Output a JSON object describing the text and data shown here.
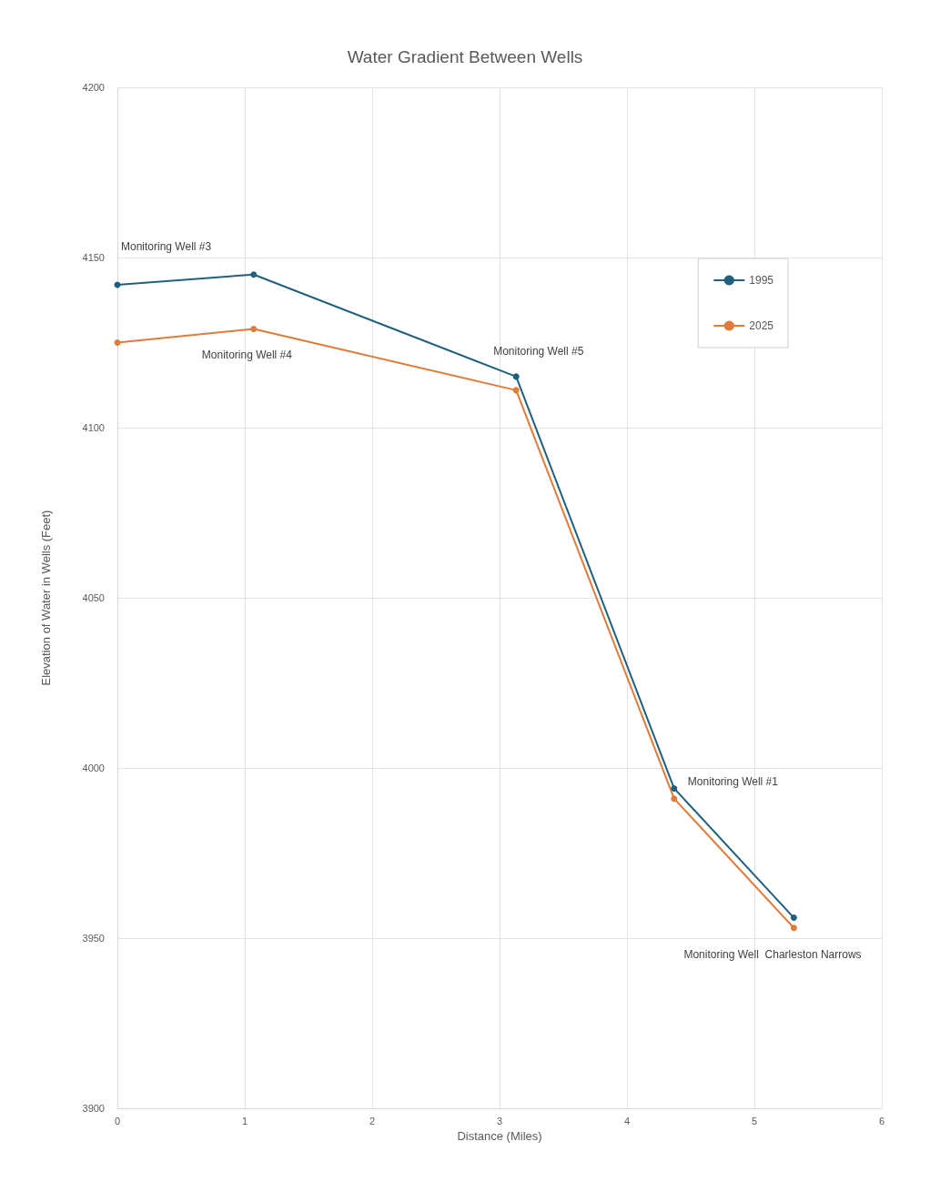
{
  "chart_data": {
    "type": "line",
    "title": "Water Gradient Between Wells",
    "xlabel": "Distance (Miles)",
    "ylabel": "Elevation of Water in Wells (Feet)",
    "xlim": [
      0,
      6
    ],
    "xticks": [
      0,
      1,
      2,
      3,
      4,
      5,
      6
    ],
    "ylim": [
      3900,
      4200
    ],
    "yticks": [
      3900,
      3950,
      4000,
      4050,
      4100,
      4150,
      4200
    ],
    "grid": true,
    "legend": "top right",
    "marker": "circle",
    "line_style": "solid",
    "series": [
      {
        "name": "1995",
        "color": "#20607f",
        "x": [
          0,
          1.07,
          3.13,
          4.37,
          5.31
        ],
        "values": [
          4142,
          4145,
          4115,
          3994,
          3956
        ]
      },
      {
        "name": "2025",
        "color": "#e07b39",
        "x": [
          0,
          1.07,
          3.13,
          4.37,
          5.31
        ],
        "values": [
          4125,
          4129,
          4111,
          3991,
          3953
        ]
      }
    ],
    "annotations": [
      {
        "text": "Monitoring Well #3",
        "x": 0,
        "y": 4142
      },
      {
        "text": "Monitoring Well #4",
        "x": 1.07,
        "y": 4129
      },
      {
        "text": "Monitoring Well #5",
        "x": 3.13,
        "y": 4115
      },
      {
        "text": "Monitoring Well #1",
        "x": 4.37,
        "y": 3994
      },
      {
        "text": "Monitoring Well  Charleston Narrows",
        "x": 5.31,
        "y": 3953
      }
    ]
  }
}
